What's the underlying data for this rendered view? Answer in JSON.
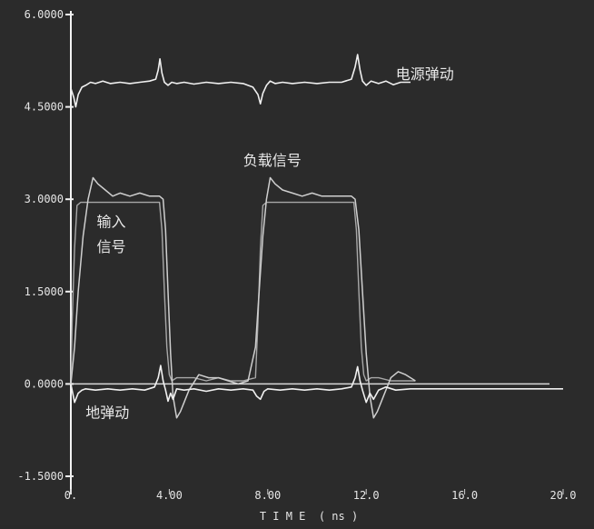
{
  "chart_data": {
    "type": "line",
    "title": "",
    "xlabel": "T I M E  ( ns )",
    "ylabel": "",
    "xlim": [
      0,
      20
    ],
    "ylim": [
      -1.5,
      6
    ],
    "x_ticks": [
      0,
      4,
      8,
      12,
      16,
      20
    ],
    "x_tick_labels": [
      "0.",
      "4.00",
      "8.00",
      "12.0",
      "16.0",
      "20.0"
    ],
    "y_ticks": [
      -1.5,
      0,
      1.5,
      3,
      4.5,
      6
    ],
    "y_tick_labels": [
      "-1.5000",
      "0.0000",
      "1.5000",
      "3.0000",
      "4.5000",
      "6.0000"
    ],
    "grid": false,
    "legend": "none",
    "colors": {
      "background": "#2b2b2b",
      "axis": "#f2f2f2",
      "power": "#f0f0f0",
      "ground": "#f0f0f0",
      "load": "#cfcfcf",
      "input": "#a8a8a8",
      "text": "#e8e8e8"
    },
    "annotations": [
      {
        "text": "电源弹动",
        "x": 13.2,
        "y": 4.95
      },
      {
        "text": "负载信号",
        "x": 7.0,
        "y": 3.55
      },
      {
        "text": "输入",
        "x": 1.05,
        "y": 2.55
      },
      {
        "text": "信号",
        "x": 1.05,
        "y": 2.15
      },
      {
        "text": "地弹动",
        "x": 0.6,
        "y": -0.55
      }
    ],
    "series": [
      {
        "id": "power",
        "x": [
          0,
          0.12,
          0.2,
          0.3,
          0.45,
          0.6,
          0.8,
          1.0,
          1.3,
          1.6,
          2.0,
          2.4,
          2.8,
          3.2,
          3.45,
          3.55,
          3.62,
          3.7,
          3.8,
          3.95,
          4.1,
          4.3,
          4.6,
          5.0,
          5.5,
          6.0,
          6.5,
          7.0,
          7.4,
          7.6,
          7.7,
          7.8,
          7.95,
          8.1,
          8.3,
          8.6,
          9.0,
          9.5,
          10.0,
          10.5,
          11.0,
          11.4,
          11.55,
          11.65,
          11.75,
          11.85,
          12.0,
          12.2,
          12.5,
          12.8,
          13.1,
          13.4,
          13.8
        ],
        "y": [
          4.8,
          4.65,
          4.5,
          4.7,
          4.82,
          4.85,
          4.9,
          4.88,
          4.92,
          4.88,
          4.9,
          4.88,
          4.9,
          4.92,
          4.95,
          5.1,
          5.28,
          5.05,
          4.9,
          4.85,
          4.9,
          4.88,
          4.9,
          4.87,
          4.9,
          4.88,
          4.9,
          4.88,
          4.82,
          4.7,
          4.55,
          4.72,
          4.85,
          4.92,
          4.88,
          4.9,
          4.88,
          4.9,
          4.88,
          4.9,
          4.9,
          4.95,
          5.15,
          5.35,
          5.1,
          4.92,
          4.85,
          4.92,
          4.88,
          4.92,
          4.86,
          4.9,
          4.9
        ]
      },
      {
        "id": "ground",
        "x": [
          0,
          0.15,
          0.3,
          0.45,
          0.6,
          1.0,
          1.5,
          2.0,
          2.5,
          3.0,
          3.4,
          3.55,
          3.65,
          3.75,
          3.85,
          3.95,
          4.05,
          4.15,
          4.3,
          4.6,
          5.0,
          5.5,
          6.0,
          6.5,
          7.0,
          7.4,
          7.55,
          7.7,
          7.85,
          8.0,
          8.5,
          9.0,
          9.5,
          10.0,
          10.5,
          11.0,
          11.4,
          11.55,
          11.65,
          11.75,
          11.85,
          12.0,
          12.15,
          12.3,
          12.5,
          12.8,
          13.2,
          13.8,
          16.0,
          20.0
        ],
        "y": [
          0.0,
          -0.3,
          -0.15,
          -0.1,
          -0.08,
          -0.1,
          -0.08,
          -0.1,
          -0.08,
          -0.1,
          -0.05,
          0.1,
          0.3,
          0.05,
          -0.1,
          -0.28,
          -0.15,
          -0.25,
          -0.08,
          -0.1,
          -0.08,
          -0.12,
          -0.08,
          -0.1,
          -0.08,
          -0.1,
          -0.2,
          -0.25,
          -0.12,
          -0.08,
          -0.1,
          -0.08,
          -0.1,
          -0.08,
          -0.1,
          -0.08,
          -0.05,
          0.1,
          0.28,
          0.05,
          -0.1,
          -0.3,
          -0.15,
          -0.25,
          -0.1,
          -0.05,
          -0.1,
          -0.08,
          -0.08,
          -0.08
        ]
      },
      {
        "id": "load",
        "x": [
          0,
          0.15,
          0.3,
          0.5,
          0.7,
          0.9,
          1.1,
          1.4,
          1.7,
          2.0,
          2.4,
          2.8,
          3.2,
          3.6,
          3.75,
          3.85,
          3.95,
          4.05,
          4.15,
          4.3,
          4.45,
          4.6,
          4.8,
          5.2,
          5.6,
          6.0,
          6.4,
          6.8,
          7.2,
          7.5,
          7.65,
          7.8,
          7.95,
          8.1,
          8.3,
          8.6,
          9.0,
          9.4,
          9.8,
          10.2,
          10.6,
          11.0,
          11.4,
          11.55,
          11.7,
          11.85,
          12.0,
          12.15,
          12.3,
          12.45,
          12.6,
          12.8,
          13.0,
          13.3,
          13.6,
          14.0
        ],
        "y": [
          0.0,
          0.6,
          1.5,
          2.4,
          3.0,
          3.35,
          3.25,
          3.15,
          3.05,
          3.1,
          3.05,
          3.1,
          3.05,
          3.05,
          3.0,
          2.5,
          1.5,
          0.5,
          -0.2,
          -0.55,
          -0.45,
          -0.3,
          -0.1,
          0.15,
          0.1,
          0.1,
          0.05,
          0.0,
          0.05,
          0.6,
          1.5,
          2.4,
          3.0,
          3.35,
          3.25,
          3.15,
          3.1,
          3.05,
          3.1,
          3.05,
          3.05,
          3.05,
          3.05,
          3.0,
          2.5,
          1.5,
          0.5,
          -0.2,
          -0.55,
          -0.45,
          -0.3,
          -0.1,
          0.1,
          0.2,
          0.15,
          0.05
        ]
      },
      {
        "id": "input",
        "x": [
          0,
          0.05,
          0.15,
          0.25,
          0.4,
          0.6,
          3.6,
          3.7,
          3.8,
          3.9,
          4.0,
          4.1,
          4.3,
          4.6,
          5.0,
          5.5,
          6.0,
          6.5,
          7.0,
          7.5,
          7.6,
          7.7,
          7.8,
          7.95,
          11.5,
          11.6,
          11.7,
          11.8,
          11.9,
          12.0,
          12.2,
          12.5,
          13.0,
          13.5,
          14.0
        ],
        "y": [
          0.0,
          1.0,
          2.2,
          2.9,
          2.95,
          2.95,
          2.95,
          2.5,
          1.5,
          0.6,
          0.15,
          0.05,
          0.1,
          0.1,
          0.1,
          0.05,
          0.1,
          0.05,
          0.05,
          0.1,
          1.0,
          2.2,
          2.9,
          2.95,
          2.95,
          2.5,
          1.5,
          0.6,
          0.15,
          0.05,
          0.1,
          0.1,
          0.05,
          0.05,
          0.05
        ]
      }
    ]
  }
}
